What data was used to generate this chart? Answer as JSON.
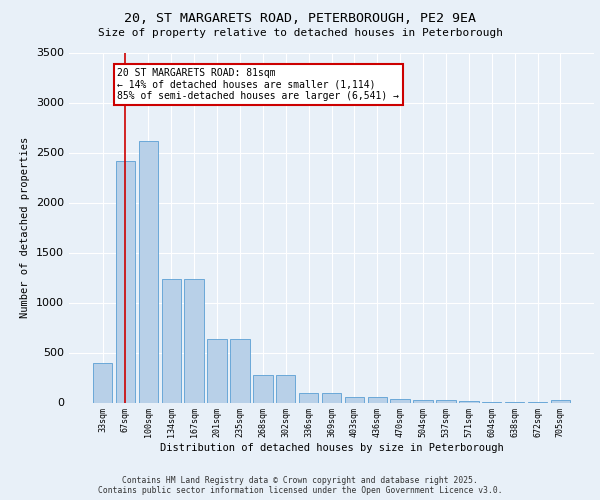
{
  "title_line1": "20, ST MARGARETS ROAD, PETERBOROUGH, PE2 9EA",
  "title_line2": "Size of property relative to detached houses in Peterborough",
  "xlabel": "Distribution of detached houses by size in Peterborough",
  "ylabel": "Number of detached properties",
  "categories": [
    "33sqm",
    "67sqm",
    "100sqm",
    "134sqm",
    "167sqm",
    "201sqm",
    "235sqm",
    "268sqm",
    "302sqm",
    "336sqm",
    "369sqm",
    "403sqm",
    "436sqm",
    "470sqm",
    "504sqm",
    "537sqm",
    "571sqm",
    "604sqm",
    "638sqm",
    "672sqm",
    "705sqm"
  ],
  "values": [
    400,
    2420,
    2620,
    1240,
    1240,
    640,
    640,
    280,
    280,
    100,
    95,
    58,
    55,
    38,
    28,
    22,
    12,
    8,
    6,
    4,
    28
  ],
  "bar_color": "#b8d0e8",
  "bar_edge_color": "#5a9fd4",
  "annotation_text": "20 ST MARGARETS ROAD: 81sqm\n← 14% of detached houses are smaller (1,114)\n85% of semi-detached houses are larger (6,541) →",
  "annotation_box_color": "#ffffff",
  "annotation_box_edge": "#cc0000",
  "vline_x": 1.0,
  "vline_color": "#cc0000",
  "background_color": "#e8f0f8",
  "plot_bg_color": "#e8f0f8",
  "grid_color": "#ffffff",
  "ylim": [
    0,
    3500
  ],
  "footer_line1": "Contains HM Land Registry data © Crown copyright and database right 2025.",
  "footer_line2": "Contains public sector information licensed under the Open Government Licence v3.0."
}
